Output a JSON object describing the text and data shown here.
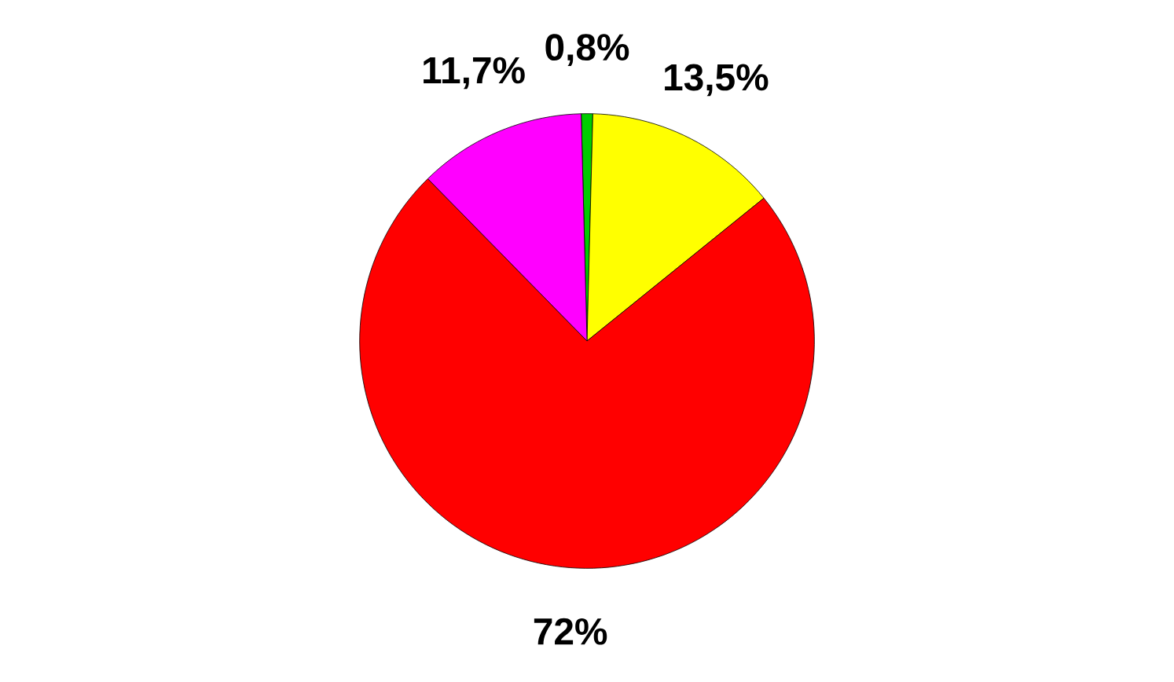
{
  "chart_data": {
    "type": "pie",
    "categories": [
      null,
      null,
      null,
      null
    ],
    "values": [
      0.8,
      13.5,
      72,
      11.7
    ],
    "colors": [
      "#00cc00",
      "#ffff00",
      "#ff0000",
      "#ff00ff"
    ],
    "value_labels": [
      "0,8%",
      "13,5%",
      "72%",
      "11,7%"
    ]
  }
}
